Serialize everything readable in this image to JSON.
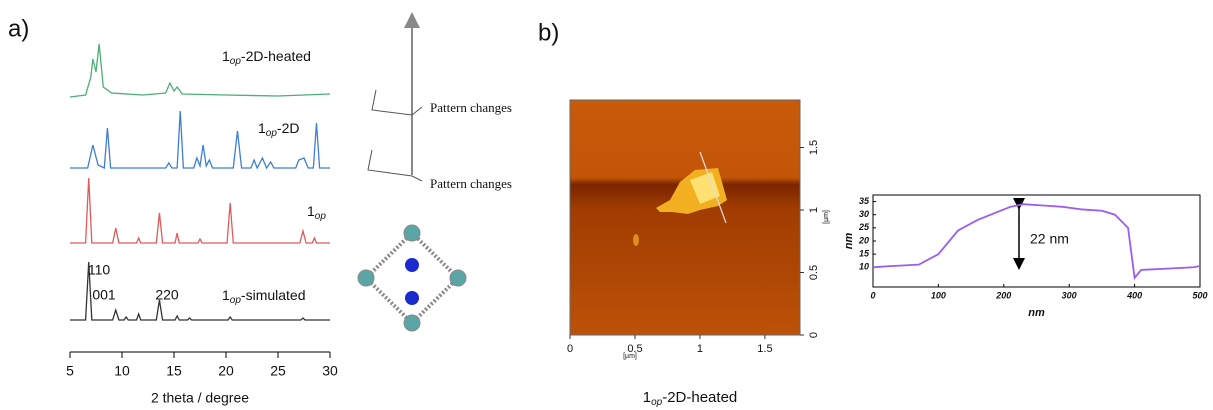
{
  "panel_labels": [
    "a)",
    "b)"
  ],
  "diagram": {
    "labels": [
      "Pattern changes",
      "Pattern changes"
    ]
  },
  "chart_data": [
    {
      "type": "line",
      "xlabel": "2 theta / degree",
      "xlim": [
        5,
        30
      ],
      "xticks": [
        5,
        10,
        15,
        20,
        25,
        30
      ],
      "annotations": [
        "110",
        "001",
        "220"
      ],
      "series": [
        {
          "name": [
            "1",
            "op",
            "-2D-heated"
          ],
          "color": "#4cae78",
          "x": [
            5,
            6.5,
            7.0,
            7.2,
            7.5,
            7.8,
            8.2,
            9,
            12,
            14.2,
            14.6,
            15.0,
            15.3,
            15.8,
            20,
            25,
            30
          ],
          "values": [
            0,
            2,
            20,
            38,
            25,
            53,
            10,
            4,
            2,
            4,
            14,
            6,
            10,
            3,
            2,
            1,
            3
          ]
        },
        {
          "name": [
            "1",
            "op",
            "-2D"
          ],
          "color": "#3f7fcf",
          "x": [
            5,
            6.7,
            7.2,
            7.7,
            8.3,
            8.6,
            8.9,
            14.2,
            14.5,
            14.8,
            15.3,
            15.6,
            15.9,
            16.9,
            17.2,
            17.5,
            17.8,
            18.1,
            18.4,
            18.7,
            20.7,
            21.1,
            21.5,
            22.4,
            22.7,
            23.0,
            23.5,
            23.9,
            24.3,
            24.6,
            26.7,
            27.0,
            27.5,
            27.9,
            28.4,
            28.7,
            29.0,
            30
          ],
          "values": [
            0,
            0,
            23,
            3,
            0,
            40,
            0,
            0,
            5,
            0,
            0,
            57,
            0,
            0,
            10,
            2,
            23,
            2,
            8,
            0,
            0,
            37,
            0,
            0,
            8,
            0,
            10,
            0,
            6,
            0,
            0,
            8,
            10,
            0,
            0,
            45,
            0,
            0
          ]
        },
        {
          "name": [
            "1",
            "op"
          ],
          "color": "#e05a5a",
          "x": [
            5,
            6.5,
            6.8,
            7.1,
            9.1,
            9.4,
            9.7,
            11.4,
            11.6,
            11.8,
            13.3,
            13.6,
            13.9,
            15.1,
            15.3,
            15.5,
            17.3,
            17.5,
            17.7,
            20.1,
            20.4,
            20.7,
            27.1,
            27.4,
            27.7,
            28.3,
            28.5,
            28.7,
            30
          ],
          "values": [
            0,
            0,
            65,
            0,
            0,
            15,
            0,
            0,
            5,
            0,
            0,
            30,
            0,
            0,
            10,
            0,
            0,
            4,
            0,
            0,
            40,
            0,
            0,
            12,
            0,
            0,
            5,
            0,
            0
          ]
        },
        {
          "name": [
            "1",
            "op",
            "-simulated"
          ],
          "color": "#333333",
          "x": [
            5,
            6.5,
            6.8,
            7.1,
            9.1,
            9.4,
            9.7,
            10.2,
            10.4,
            10.6,
            11.4,
            11.6,
            11.8,
            13.3,
            13.6,
            13.9,
            15.1,
            15.3,
            15.5,
            16.3,
            16.5,
            16.7,
            20.2,
            20.4,
            20.6,
            27.2,
            27.4,
            27.6,
            30
          ],
          "values": [
            0,
            0,
            58,
            0,
            0,
            10,
            0,
            0,
            3,
            0,
            0,
            6,
            0,
            0,
            20,
            0,
            0,
            4,
            0,
            0,
            2,
            0,
            0,
            3,
            0,
            0,
            2,
            0,
            0
          ]
        }
      ]
    },
    {
      "type": "image",
      "xlabel": "[µm]",
      "ylabel": "[µm]",
      "xlim": [
        0,
        1.77
      ],
      "ylim": [
        0,
        1.88
      ],
      "xticks": [
        0,
        0.5,
        1,
        1.5
      ],
      "yticks": [
        0,
        0.5,
        1,
        1.5
      ],
      "caption": [
        "1",
        "op",
        "-2D-heated"
      ]
    },
    {
      "type": "line",
      "xlabel": "nm",
      "ylabel": "nm",
      "xlim": [
        0,
        500
      ],
      "ylim": [
        2.5,
        37.5
      ],
      "xticks": [
        0,
        100,
        200,
        300,
        400,
        500
      ],
      "yticks": [
        10,
        15,
        20,
        25,
        30,
        35
      ],
      "annotations": [
        "22 nm"
      ],
      "color": "#9b5cf0",
      "x": [
        0,
        30,
        70,
        100,
        130,
        160,
        190,
        210,
        230,
        260,
        290,
        320,
        350,
        370,
        390,
        400,
        410,
        450,
        490,
        500
      ],
      "values": [
        10,
        10.5,
        11,
        15,
        24,
        28,
        31,
        33,
        34,
        33.5,
        33,
        32,
        31.5,
        30,
        25,
        6,
        9,
        9.5,
        10,
        10.5
      ]
    }
  ]
}
